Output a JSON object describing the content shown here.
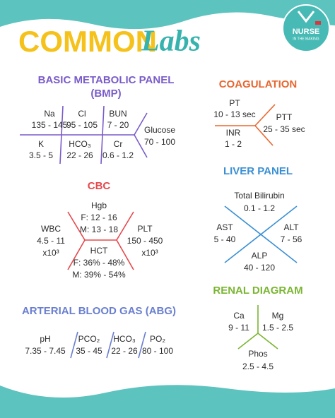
{
  "header": {
    "title_main": "COMMON",
    "title_script": "Labs",
    "logo_name": "NURSE",
    "logo_tagline": "IN THE MAKING"
  },
  "bmp": {
    "title": "BASIC METABOLIC PANEL",
    "subtitle": "(BMP)",
    "items": [
      {
        "name": "Na",
        "range": "135 - 145"
      },
      {
        "name": "Cl",
        "range": "95 - 105"
      },
      {
        "name": "BUN",
        "range": "7 - 20"
      },
      {
        "name": "K",
        "range": "3.5 - 5"
      },
      {
        "name": "HCO₃",
        "range": "22 - 26"
      },
      {
        "name": "Cr",
        "range": "0.6 - 1.2"
      },
      {
        "name": "Glucose",
        "range": "70 - 100"
      }
    ]
  },
  "coagulation": {
    "title": "COAGULATION",
    "items": [
      {
        "name": "PT",
        "range": "10 - 13 sec"
      },
      {
        "name": "INR",
        "range": "1 - 2"
      },
      {
        "name": "PTT",
        "range": "25 - 35 sec"
      }
    ]
  },
  "cbc": {
    "title": "CBC",
    "items": [
      {
        "name": "Hgb",
        "lines": [
          "F: 12 - 16",
          "M: 13 - 18"
        ]
      },
      {
        "name": "WBC",
        "lines": [
          "4.5 - 11",
          "x10³"
        ]
      },
      {
        "name": "PLT",
        "lines": [
          "150 - 450",
          "x10³"
        ]
      },
      {
        "name": "HCT",
        "lines": [
          "F:  36% - 48%",
          "M: 39% - 54%"
        ]
      }
    ]
  },
  "liver_panel": {
    "title": "LIVER PANEL",
    "items": [
      {
        "name": "Total Bilirubin",
        "range": "0.1 - 1.2"
      },
      {
        "name": "AST",
        "range": "5 - 40"
      },
      {
        "name": "ALT",
        "range": "7 - 56"
      },
      {
        "name": "ALP",
        "range": "40 - 120"
      }
    ]
  },
  "renal_diagram": {
    "title": "RENAL DIAGRAM",
    "items": [
      {
        "name": "Ca",
        "range": "9 - 11"
      },
      {
        "name": "Mg",
        "range": "1.5 - 2.5"
      },
      {
        "name": "Phos",
        "range": "2.5 - 4.5"
      }
    ]
  },
  "abg": {
    "title": "ARTERIAL BLOOD GAS (ABG)",
    "items": [
      {
        "name": "pH",
        "range": "7.35 - 7.45"
      },
      {
        "name": "PCO₂",
        "range": "35 - 45"
      },
      {
        "name": "HCO₃",
        "range": "22 - 26"
      },
      {
        "name": "PO₂",
        "range": "80 - 100"
      }
    ]
  }
}
